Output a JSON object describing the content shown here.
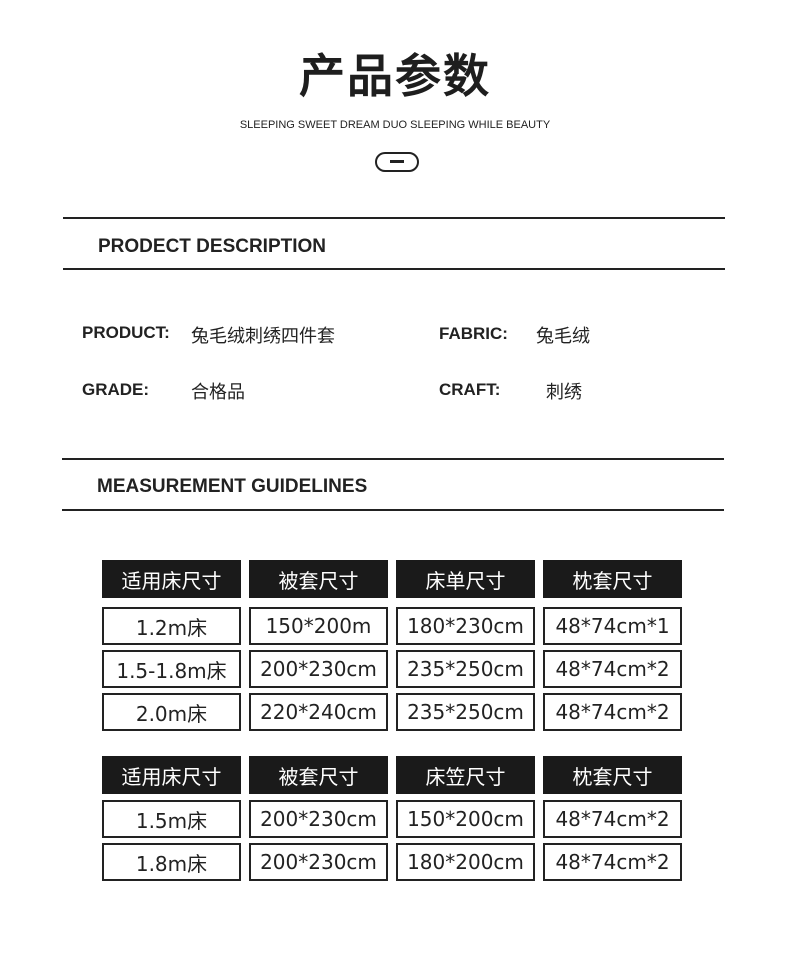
{
  "header": {
    "title": "产品参数",
    "subtitle": "SLEEPING SWEET DREAM DUO SLEEPING WHILE BEAUTY",
    "icon": "minus-pill-icon"
  },
  "description": {
    "heading": "PRODECT DESCRIPTION",
    "fields": [
      {
        "label": "PRODUCT:",
        "value": "兔毛绒刺绣四件套"
      },
      {
        "label": "FABRIC:",
        "value": "兔毛绒"
      },
      {
        "label": "GRADE:",
        "value": "合格品"
      },
      {
        "label": "CRAFT:",
        "value": "刺绣"
      }
    ]
  },
  "measurement": {
    "heading": "MEASUREMENT GUIDELINES",
    "tables": [
      {
        "headers": [
          "适用床尺寸",
          "被套尺寸",
          "床单尺寸",
          "枕套尺寸"
        ],
        "rows": [
          [
            "1.2m床",
            "150*200m",
            "180*230cm",
            "48*74cm*1"
          ],
          [
            "1.5-1.8m床",
            "200*230cm",
            "235*250cm",
            "48*74cm*2"
          ],
          [
            "2.0m床",
            "220*240cm",
            "235*250cm",
            "48*74cm*2"
          ]
        ]
      },
      {
        "headers": [
          "适用床尺寸",
          "被套尺寸",
          "床笠尺寸",
          "枕套尺寸"
        ],
        "rows": [
          [
            "1.5m床",
            "200*230cm",
            "150*200cm",
            "48*74cm*2"
          ],
          [
            "1.8m床",
            "200*230cm",
            "180*200cm",
            "48*74cm*2"
          ]
        ]
      }
    ]
  }
}
